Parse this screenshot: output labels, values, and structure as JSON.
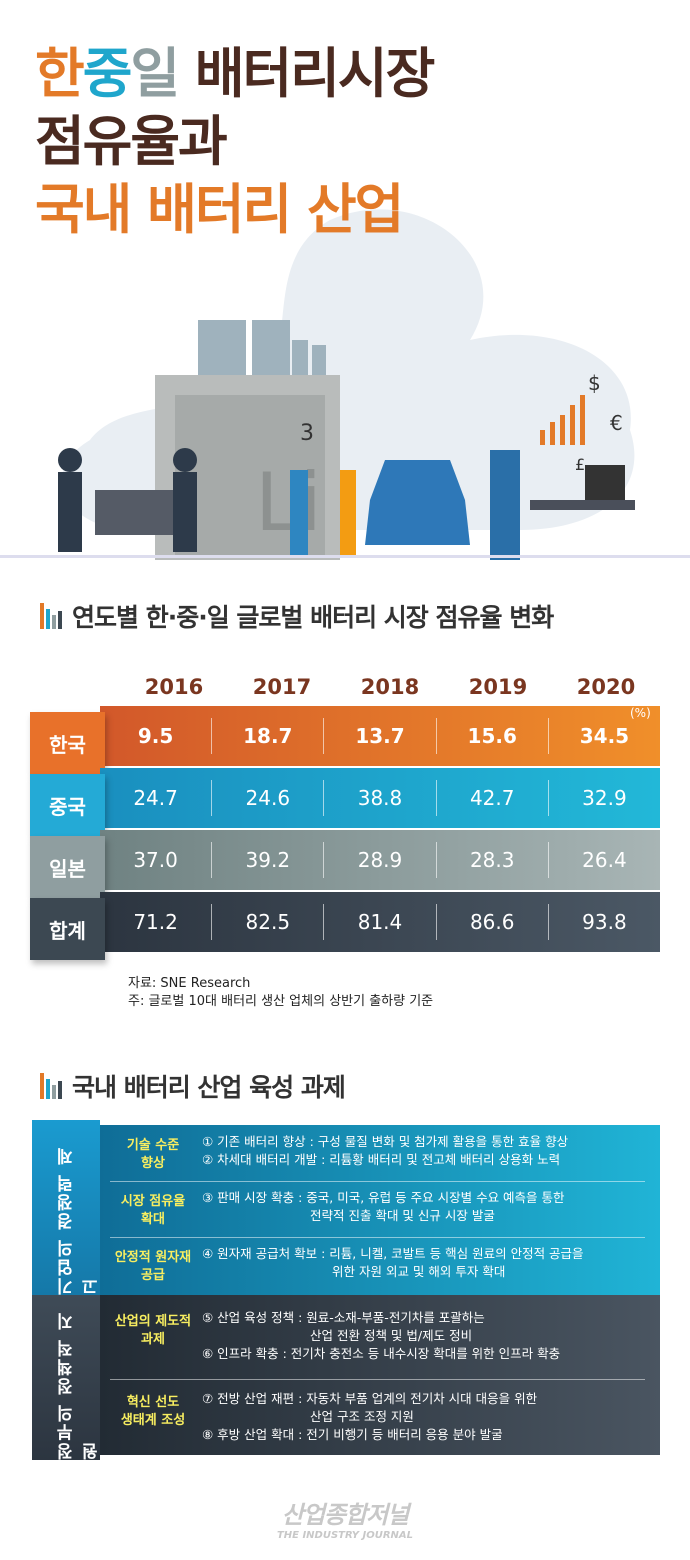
{
  "title": {
    "line1_parts": [
      "한",
      "중",
      "일",
      " 배터리시장"
    ],
    "line2": "점유율과",
    "line3": "국내 배터리 산업"
  },
  "colors": {
    "orange": "#e37a28",
    "blue": "#1fa6cc",
    "gray": "#8f9ea0",
    "dark": "#3c4852",
    "brown": "#4a2a20",
    "yellow": "#f8ee60"
  },
  "illustration": {
    "element_label": "3",
    "currency": [
      "$",
      "€",
      "£"
    ]
  },
  "section1": {
    "title": "연도별 한·중·일 글로벌 배터리 시장 점유율 변화"
  },
  "table": {
    "unit": "(%)",
    "years": [
      "2016",
      "2017",
      "2018",
      "2019",
      "2020"
    ],
    "rows": [
      {
        "label": "한국",
        "values": [
          "9.5",
          "18.7",
          "13.7",
          "15.6",
          "34.5"
        ]
      },
      {
        "label": "중국",
        "values": [
          "24.7",
          "24.6",
          "38.8",
          "42.7",
          "32.9"
        ]
      },
      {
        "label": "일본",
        "values": [
          "37.0",
          "39.2",
          "28.9",
          "28.3",
          "26.4"
        ]
      },
      {
        "label": "합계",
        "values": [
          "71.2",
          "82.5",
          "81.4",
          "86.6",
          "93.8"
        ]
      }
    ],
    "source": "자료: SNE Research",
    "note": "주: 글로벌 10대 배터리 생산 업체의 상반기 출하량 기준"
  },
  "section2": {
    "title": "국내 배터리 산업 육성 과제"
  },
  "tasks": {
    "company": {
      "side": "기업의 경쟁력 제고",
      "groups": [
        {
          "cat": [
            "기술 수준",
            "향상"
          ],
          "items": [
            "① 기존 배터리 향상 : 구성 물질 변화 및 첨가제 활용을 통한 효율 향상",
            "② 차세대 배터리 개발 : 리튬황 배터리 및 전고체 배터리 상용화 노력"
          ]
        },
        {
          "cat": [
            "시장 점유율",
            "확대"
          ],
          "items": [
            "③ 판매 시장 확충 : 중국, 미국, 유럽 등 주요 시장별 수요 예측을 통한",
            "전략적 진출 확대 및 신규 시장 발굴"
          ]
        },
        {
          "cat": [
            "안정적 원자재",
            "공급"
          ],
          "items": [
            "④ 원자재 공급처 확보 : 리튬, 니켈, 코발트 등 핵심 원료의 안정적 공급을",
            "위한 자원 외교 및 해외 투자 확대"
          ]
        }
      ]
    },
    "government": {
      "side": "정부의 정책적 지원",
      "groups": [
        {
          "cat": [
            "산업의 제도적",
            "과제"
          ],
          "items": [
            "⑤ 산업 육성 정책 : 원료-소재-부품-전기차를 포괄하는",
            "산업 전환 정책 및 법/제도 정비",
            "⑥ 인프라 확충 : 전기차 충전소 등 내수시장 확대를 위한 인프라 확충"
          ]
        },
        {
          "cat": [
            "혁신 선도",
            "생태계 조성"
          ],
          "items": [
            "⑦ 전방 산업 재편 : 자동차 부품 업계의 전기차 시대 대응을 위한",
            "산업 구조 조정 지원",
            "⑧ 후방 산업 확대 : 전기 비행기 등 배터리 응용 분야 발굴"
          ]
        }
      ]
    }
  },
  "logo": {
    "ko": "산업종합저널",
    "en": "THE INDUSTRY JOURNAL"
  }
}
